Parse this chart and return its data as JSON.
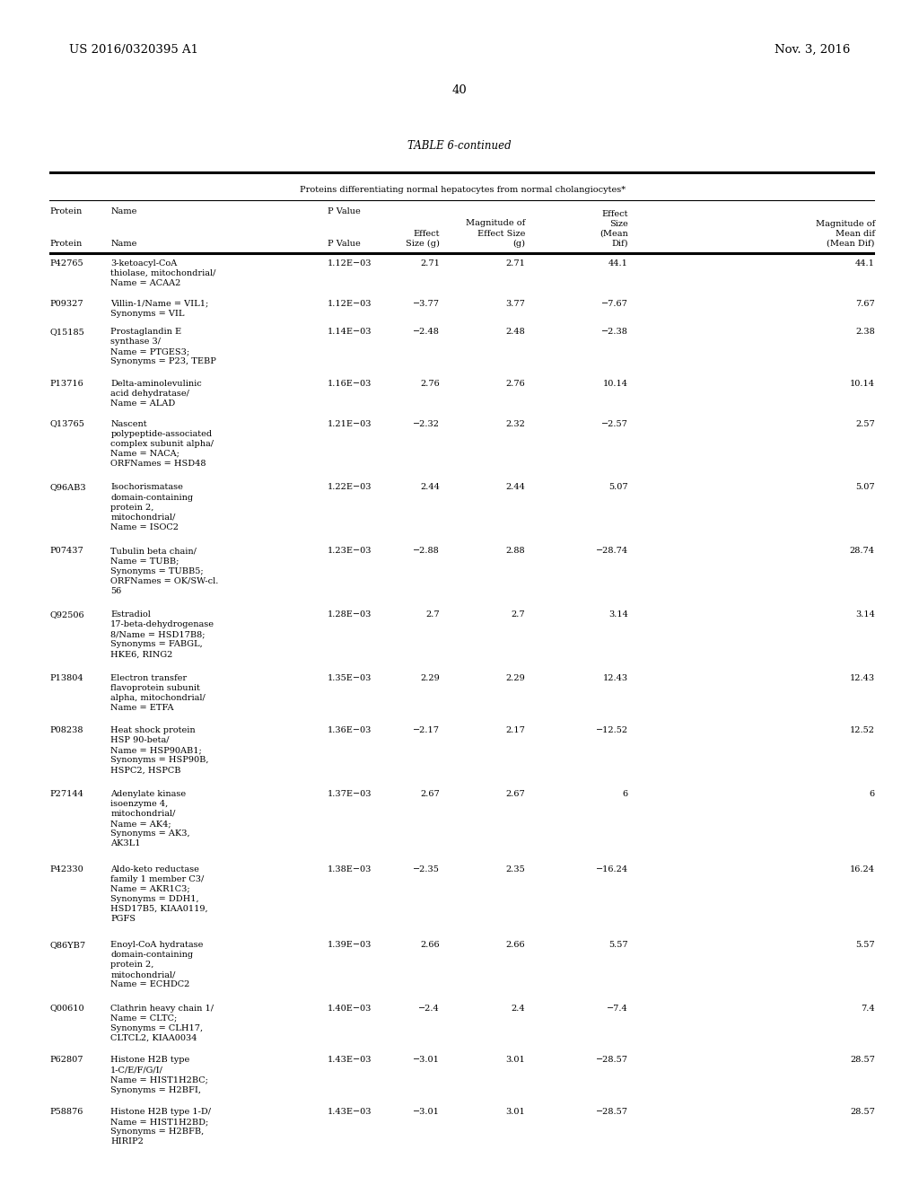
{
  "header_left": "US 2016/0320395 A1",
  "header_right": "Nov. 3, 2016",
  "page_number": "40",
  "table_title": "TABLE 6-continued",
  "table_subtitle": "Proteins differentiating normal hepatocytes from normal cholangiocytes*",
  "rows": [
    {
      "protein": "P42765",
      "name": "3-ketoacyl-CoA\nthiolase, mitochondrial/\nName = ACAA2",
      "p_value": "1.12E−03",
      "effect_size": "2.71",
      "mag_effect": "2.71",
      "eff_mean": "44.1",
      "mag_mean": "44.1"
    },
    {
      "protein": "P09327",
      "name": "Villin-1/Name = VIL1;\nSynonyms = VIL",
      "p_value": "1.12E−03",
      "effect_size": "−3.77",
      "mag_effect": "3.77",
      "eff_mean": "−7.67",
      "mag_mean": "7.67"
    },
    {
      "protein": "Q15185",
      "name": "Prostaglandin E\nsynthase 3/\nName = PTGES3;\nSynonyms = P23, TEBP",
      "p_value": "1.14E−03",
      "effect_size": "−2.48",
      "mag_effect": "2.48",
      "eff_mean": "−2.38",
      "mag_mean": "2.38"
    },
    {
      "protein": "P13716",
      "name": "Delta-aminolevulinic\nacid dehydratase/\nName = ALAD",
      "p_value": "1.16E−03",
      "effect_size": "2.76",
      "mag_effect": "2.76",
      "eff_mean": "10.14",
      "mag_mean": "10.14"
    },
    {
      "protein": "Q13765",
      "name": "Nascent\npolypeptide-associated\ncomplex subunit alpha/\nName = NACA;\nORFNames = HSD48",
      "p_value": "1.21E−03",
      "effect_size": "−2.32",
      "mag_effect": "2.32",
      "eff_mean": "−2.57",
      "mag_mean": "2.57"
    },
    {
      "protein": "Q96AB3",
      "name": "Isochorismatase\ndomain-containing\nprotein 2,\nmitochondrial/\nName = ISOC2",
      "p_value": "1.22E−03",
      "effect_size": "2.44",
      "mag_effect": "2.44",
      "eff_mean": "5.07",
      "mag_mean": "5.07"
    },
    {
      "protein": "P07437",
      "name": "Tubulin beta chain/\nName = TUBB;\nSynonyms = TUBB5;\nORFNames = OK/SW-cl.\n56",
      "p_value": "1.23E−03",
      "effect_size": "−2.88",
      "mag_effect": "2.88",
      "eff_mean": "−28.74",
      "mag_mean": "28.74"
    },
    {
      "protein": "Q92506",
      "name": "Estradiol\n17-beta-dehydrogenase\n8/Name = HSD17B8;\nSynonyms = FABGL,\nHKE6, RING2",
      "p_value": "1.28E−03",
      "effect_size": "2.7",
      "mag_effect": "2.7",
      "eff_mean": "3.14",
      "mag_mean": "3.14"
    },
    {
      "protein": "P13804",
      "name": "Electron transfer\nflavoprotein subunit\nalpha, mitochondrial/\nName = ETFA",
      "p_value": "1.35E−03",
      "effect_size": "2.29",
      "mag_effect": "2.29",
      "eff_mean": "12.43",
      "mag_mean": "12.43"
    },
    {
      "protein": "P08238",
      "name": "Heat shock protein\nHSP 90-beta/\nName = HSP90AB1;\nSynonyms = HSP90B,\nHSPC2, HSPCB",
      "p_value": "1.36E−03",
      "effect_size": "−2.17",
      "mag_effect": "2.17",
      "eff_mean": "−12.52",
      "mag_mean": "12.52"
    },
    {
      "protein": "P27144",
      "name": "Adenylate kinase\nisoenzyme 4,\nmitochondrial/\nName = AK4;\nSynonyms = AK3,\nAK3L1",
      "p_value": "1.37E−03",
      "effect_size": "2.67",
      "mag_effect": "2.67",
      "eff_mean": "6",
      "mag_mean": "6"
    },
    {
      "protein": "P42330",
      "name": "Aldo-keto reductase\nfamily 1 member C3/\nName = AKR1C3;\nSynonyms = DDH1,\nHSD17B5, KIAA0119,\nPGFS",
      "p_value": "1.38E−03",
      "effect_size": "−2.35",
      "mag_effect": "2.35",
      "eff_mean": "−16.24",
      "mag_mean": "16.24"
    },
    {
      "protein": "Q86YB7",
      "name": "Enoyl-CoA hydratase\ndomain-containing\nprotein 2,\nmitochondrial/\nName = ECHDC2",
      "p_value": "1.39E−03",
      "effect_size": "2.66",
      "mag_effect": "2.66",
      "eff_mean": "5.57",
      "mag_mean": "5.57"
    },
    {
      "protein": "Q00610",
      "name": "Clathrin heavy chain 1/\nName = CLTC;\nSynonyms = CLH17,\nCLTCL2, KIAA0034",
      "p_value": "1.40E−03",
      "effect_size": "−2.4",
      "mag_effect": "2.4",
      "eff_mean": "−7.4",
      "mag_mean": "7.4"
    },
    {
      "protein": "P62807",
      "name": "Histone H2B type\n1-C/E/F/G/I/\nName = HIST1H2BC;\nSynonyms = H2BFI,",
      "p_value": "1.43E−03",
      "effect_size": "−3.01",
      "mag_effect": "3.01",
      "eff_mean": "−28.57",
      "mag_mean": "28.57"
    },
    {
      "protein": "P58876",
      "name": "Histone H2B type 1-D/\nName = HIST1H2BD;\nSynonyms = H2BFB,\nHIRIP2",
      "p_value": "1.43E−03",
      "effect_size": "−3.01",
      "mag_effect": "3.01",
      "eff_mean": "−28.57",
      "mag_mean": "28.57"
    }
  ],
  "bg_color": "#ffffff",
  "text_color": "#000000",
  "font_size": 7.0,
  "header_font_size": 9.5
}
